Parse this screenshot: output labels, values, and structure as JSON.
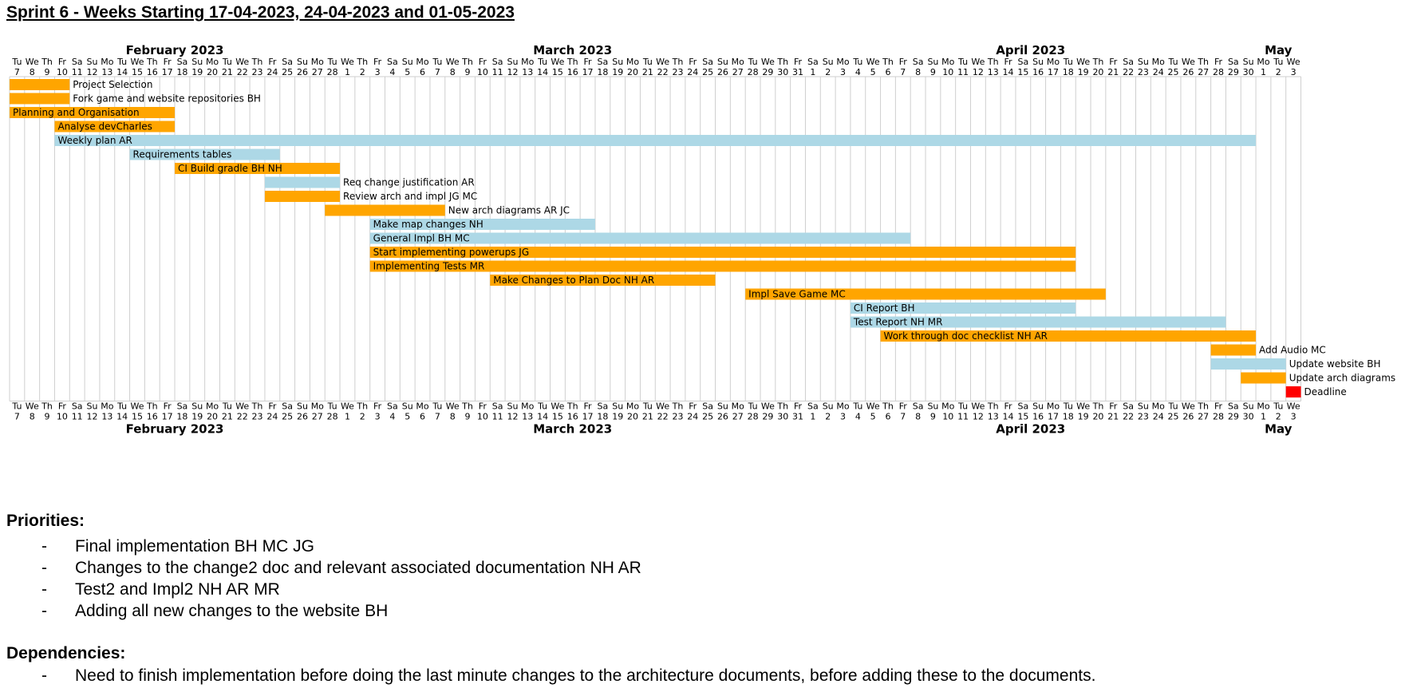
{
  "document": {
    "title": "Sprint 6 - Weeks Starting 17-04-2023, 24-04-2023 and 01-05-2023"
  },
  "chart_data": {
    "type": "gantt",
    "date_range": [
      "2023-02-07",
      "2023-05-03"
    ],
    "months": [
      {
        "label": "February 2023",
        "start": "2023-02-07",
        "end": "2023-02-28"
      },
      {
        "label": "March 2023",
        "start": "2023-03-01",
        "end": "2023-03-31"
      },
      {
        "label": "April 2023",
        "start": "2023-04-01",
        "end": "2023-04-30"
      },
      {
        "label": "May",
        "start": "2023-05-01",
        "end": "2023-05-03"
      }
    ],
    "weekday_labels": [
      "Mo",
      "Tu",
      "We",
      "Th",
      "Fr",
      "Sa",
      "Su"
    ],
    "colors": {
      "orange": "#FFA500",
      "blue": "#ADD8E6",
      "red": "#FF0000"
    },
    "tasks": [
      {
        "name": "Project Selection",
        "start": "2023-02-07",
        "end": "2023-02-10",
        "color": "orange",
        "label_position": "right"
      },
      {
        "name": "Fork game and website repositories BH",
        "start": "2023-02-07",
        "end": "2023-02-10",
        "color": "orange",
        "label_position": "right"
      },
      {
        "name": "Planning and Organisation",
        "start": "2023-02-07",
        "end": "2023-02-17",
        "color": "orange",
        "label_position": "inside"
      },
      {
        "name": "Analyse devCharles",
        "start": "2023-02-10",
        "end": "2023-02-17",
        "color": "orange",
        "label_position": "inside"
      },
      {
        "name": "Weekly plan AR",
        "start": "2023-02-10",
        "end": "2023-04-30",
        "color": "blue",
        "label_position": "inside"
      },
      {
        "name": "Requirements tables",
        "start": "2023-02-15",
        "end": "2023-02-24",
        "color": "blue",
        "label_position": "inside"
      },
      {
        "name": "CI Build gradle BH NH",
        "start": "2023-02-18",
        "end": "2023-02-28",
        "color": "orange",
        "label_position": "inside"
      },
      {
        "name": "Req change justification AR",
        "start": "2023-02-24",
        "end": "2023-02-28",
        "color": "blue",
        "label_position": "right"
      },
      {
        "name": "Review arch and impl JG MC",
        "start": "2023-02-24",
        "end": "2023-02-28",
        "color": "orange",
        "label_position": "right"
      },
      {
        "name": "New arch diagrams AR JC",
        "start": "2023-02-28",
        "end": "2023-03-07",
        "color": "orange",
        "label_position": "right"
      },
      {
        "name": "Make map changes NH",
        "start": "2023-03-03",
        "end": "2023-03-17",
        "color": "blue",
        "label_position": "inside"
      },
      {
        "name": "General Impl BH MC",
        "start": "2023-03-03",
        "end": "2023-04-07",
        "color": "blue",
        "label_position": "inside"
      },
      {
        "name": "Start implementing powerups JG",
        "start": "2023-03-03",
        "end": "2023-04-18",
        "color": "orange",
        "label_position": "inside"
      },
      {
        "name": "Implementing Tests MR",
        "start": "2023-03-03",
        "end": "2023-04-18",
        "color": "orange",
        "label_position": "inside"
      },
      {
        "name": "Make Changes to Plan Doc NH AR",
        "start": "2023-03-11",
        "end": "2023-03-25",
        "color": "orange",
        "label_position": "inside"
      },
      {
        "name": "Impl Save Game MC",
        "start": "2023-03-28",
        "end": "2023-04-20",
        "color": "orange",
        "label_position": "inside"
      },
      {
        "name": "CI Report BH",
        "start": "2023-04-04",
        "end": "2023-04-18",
        "color": "blue",
        "label_position": "inside"
      },
      {
        "name": "Test Report NH MR",
        "start": "2023-04-04",
        "end": "2023-04-28",
        "color": "blue",
        "label_position": "inside"
      },
      {
        "name": "Work through doc checklist NH AR",
        "start": "2023-04-06",
        "end": "2023-04-30",
        "color": "orange",
        "label_position": "inside"
      },
      {
        "name": "Add Audio MC",
        "start": "2023-04-28",
        "end": "2023-04-30",
        "color": "orange",
        "label_position": "right"
      },
      {
        "name": "Update website BH",
        "start": "2023-04-28",
        "end": "2023-05-02",
        "color": "blue",
        "label_position": "right"
      },
      {
        "name": "Update arch diagrams",
        "start": "2023-04-30",
        "end": "2023-05-02",
        "color": "orange",
        "label_position": "right"
      },
      {
        "name": "Deadline",
        "start": "2023-05-03",
        "end": "2023-05-03",
        "color": "red",
        "label_position": "right"
      }
    ]
  },
  "priorities": {
    "heading": "Priorities:",
    "bullet": "-",
    "items": [
      "Final implementation BH MC JG",
      "Changes to the change2 doc and relevant associated documentation NH AR",
      "Test2 and Impl2 NH AR MR",
      "Adding all new changes to the website BH"
    ]
  },
  "dependencies": {
    "heading": "Dependencies:",
    "bullet": "-",
    "items": [
      "Need to finish implementation before doing the last minute changes to the architecture documents, before adding these to the documents."
    ]
  }
}
